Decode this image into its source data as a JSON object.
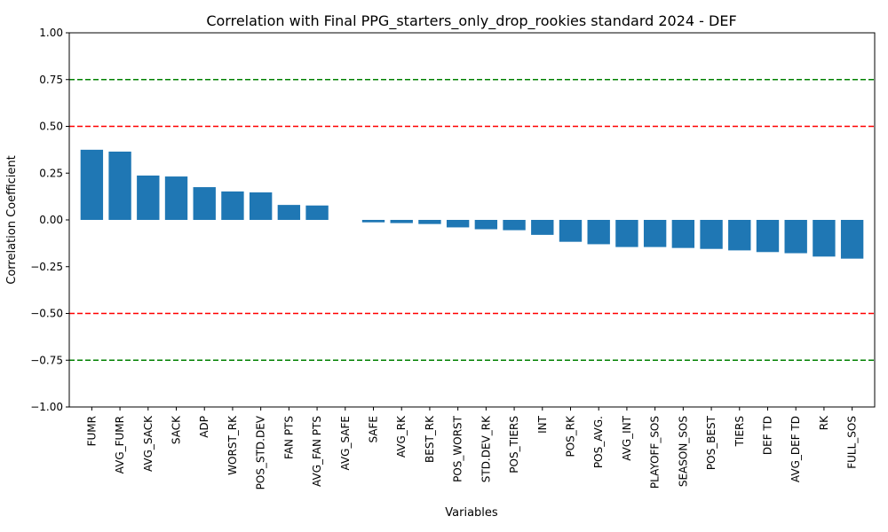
{
  "chart_data": {
    "type": "bar",
    "title": "Correlation with Final PPG_starters_only_drop_rookies standard 2024 - DEF",
    "xlabel": "Variables",
    "ylabel": "Correlation Coefficient",
    "ylim": [
      -1.0,
      1.0
    ],
    "yticks": [
      -1.0,
      -0.75,
      -0.5,
      -0.25,
      0.0,
      0.25,
      0.5,
      0.75,
      1.0
    ],
    "ytick_labels": [
      "−1.00",
      "−0.75",
      "−0.50",
      "−0.25",
      "0.00",
      "0.25",
      "0.50",
      "0.75",
      "1.00"
    ],
    "bar_color": "#1f77b4",
    "reference_lines": [
      {
        "y": 0.75,
        "color": "#008000"
      },
      {
        "y": 0.5,
        "color": "#ff0000"
      },
      {
        "y": -0.5,
        "color": "#ff0000"
      },
      {
        "y": -0.75,
        "color": "#008000"
      }
    ],
    "grid": false,
    "categories": [
      "FUMR",
      "AVG_FUMR",
      "AVG_SACK",
      "SACK",
      "ADP",
      "WORST_RK",
      "POS_STD.DEV",
      "FAN PTS",
      "AVG_FAN PTS",
      "AVG_SAFE",
      "SAFE",
      "AVG_RK",
      "BEST_RK",
      "POS_WORST",
      "STD.DEV_RK",
      "POS_TIERS",
      "INT",
      "POS_RK",
      "POS_AVG.",
      "AVG_INT",
      "PLAYOFF_SOS",
      "SEASON_SOS",
      "POS_BEST",
      "TIERS",
      "DEF TD",
      "AVG_DEF TD",
      "RK",
      "FULL_SOS"
    ],
    "values": [
      0.375,
      0.365,
      0.237,
      0.232,
      0.175,
      0.152,
      0.147,
      0.08,
      0.077,
      0.0,
      -0.013,
      -0.017,
      -0.022,
      -0.04,
      -0.05,
      -0.055,
      -0.08,
      -0.117,
      -0.13,
      -0.145,
      -0.145,
      -0.15,
      -0.155,
      -0.163,
      -0.172,
      -0.178,
      -0.196,
      -0.207
    ]
  }
}
